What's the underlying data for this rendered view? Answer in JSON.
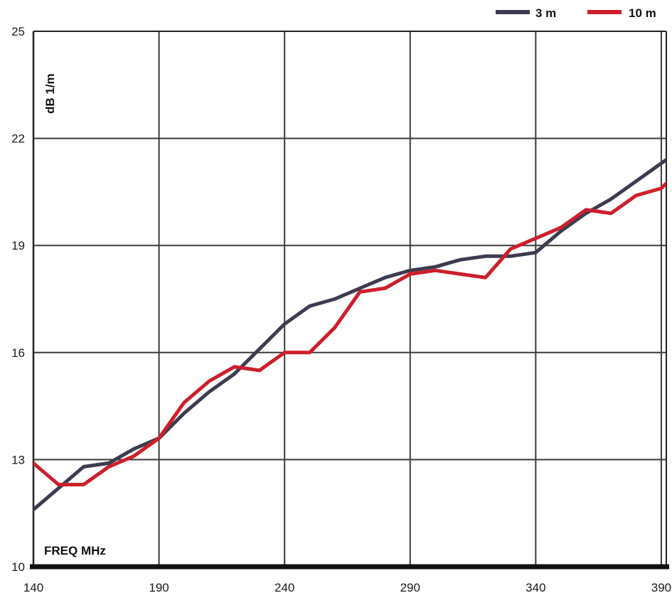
{
  "chart_data": {
    "type": "line",
    "title": "",
    "xlabel": "FREQ MHz",
    "ylabel": "dB 1/m",
    "xlim": [
      140,
      392
    ],
    "ylim": [
      10,
      25
    ],
    "xticks": [
      140,
      190,
      240,
      290,
      340,
      390
    ],
    "yticks": [
      10,
      13,
      16,
      19,
      22,
      25
    ],
    "grid": true,
    "legend": "top-right",
    "series": [
      {
        "name": "3 m",
        "color": "#3d3b4f",
        "x": [
          140,
          150,
          160,
          170,
          180,
          190,
          200,
          210,
          220,
          230,
          240,
          250,
          260,
          270,
          280,
          290,
          300,
          310,
          320,
          330,
          340,
          350,
          360,
          370,
          380,
          390,
          400
        ],
        "y": [
          11.6,
          12.2,
          12.8,
          12.9,
          13.3,
          13.6,
          14.3,
          14.9,
          15.4,
          16.1,
          16.8,
          17.3,
          17.5,
          17.8,
          18.1,
          18.3,
          18.4,
          18.6,
          18.7,
          18.7,
          18.8,
          19.4,
          19.9,
          20.3,
          20.8,
          21.3,
          21.8
        ]
      },
      {
        "name": "10 m",
        "color": "#cc1f2b",
        "x": [
          140,
          150,
          160,
          170,
          180,
          190,
          200,
          210,
          220,
          230,
          240,
          250,
          260,
          270,
          280,
          290,
          300,
          310,
          320,
          330,
          340,
          350,
          360,
          370,
          380,
          390,
          400
        ],
        "y": [
          12.9,
          12.3,
          12.3,
          12.8,
          13.1,
          13.6,
          14.6,
          15.2,
          15.6,
          15.5,
          16.0,
          16.0,
          16.7,
          17.7,
          17.8,
          18.2,
          18.3,
          18.2,
          18.1,
          18.9,
          19.2,
          19.5,
          20.0,
          19.9,
          20.4,
          20.6,
          21.3
        ]
      }
    ]
  }
}
